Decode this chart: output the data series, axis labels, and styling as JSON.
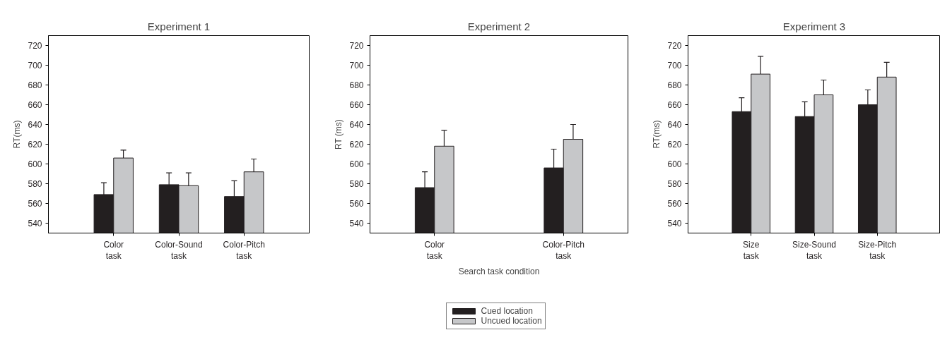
{
  "chart_data": [
    {
      "type": "bar",
      "title": "Experiment 1",
      "ylabel": "RT(ms)",
      "categories": [
        "Color task",
        "Color-Sound task",
        "Color-Pitch task"
      ],
      "series": [
        {
          "color": "#231f20",
          "values": [
            569,
            579,
            567
          ],
          "errors": [
            12,
            12,
            16
          ]
        },
        {
          "color": "#c6c7c9",
          "values": [
            606,
            578,
            592
          ],
          "errors": [
            8,
            13,
            13
          ]
        }
      ],
      "ylim": [
        530,
        730
      ],
      "yticks": [
        540,
        560,
        580,
        600,
        620,
        640,
        660,
        680,
        700,
        720
      ],
      "grid": false
    },
    {
      "type": "bar",
      "title": "Experiment 2",
      "ylabel": "RT (ms)",
      "xlabel": "Search task condition",
      "categories": [
        "Color task",
        "Color-Pitch task"
      ],
      "series": [
        {
          "name": "Cued location",
          "color": "#231f20",
          "values": [
            576,
            596
          ],
          "errors": [
            16,
            19
          ]
        },
        {
          "name": "Uncued location",
          "color": "#c6c7c9",
          "values": [
            618,
            625
          ],
          "errors": [
            16,
            15
          ]
        }
      ],
      "ylim": [
        530,
        730
      ],
      "yticks": [
        540,
        560,
        580,
        600,
        620,
        640,
        660,
        680,
        700,
        720
      ],
      "grid": false,
      "legend": "bottom"
    },
    {
      "type": "bar",
      "title": "Experiment 3",
      "ylabel": "RT(ms)",
      "categories": [
        "Size task",
        "Size-Sound task",
        "Size-Pitch task"
      ],
      "series": [
        {
          "color": "#231f20",
          "values": [
            653,
            648,
            660
          ],
          "errors": [
            14,
            15,
            15
          ]
        },
        {
          "color": "#c6c7c9",
          "values": [
            691,
            670,
            688
          ],
          "errors": [
            18,
            15,
            15
          ]
        }
      ],
      "ylim": [
        530,
        730
      ],
      "yticks": [
        540,
        560,
        580,
        600,
        620,
        640,
        660,
        680,
        700,
        720
      ],
      "grid": false
    }
  ]
}
